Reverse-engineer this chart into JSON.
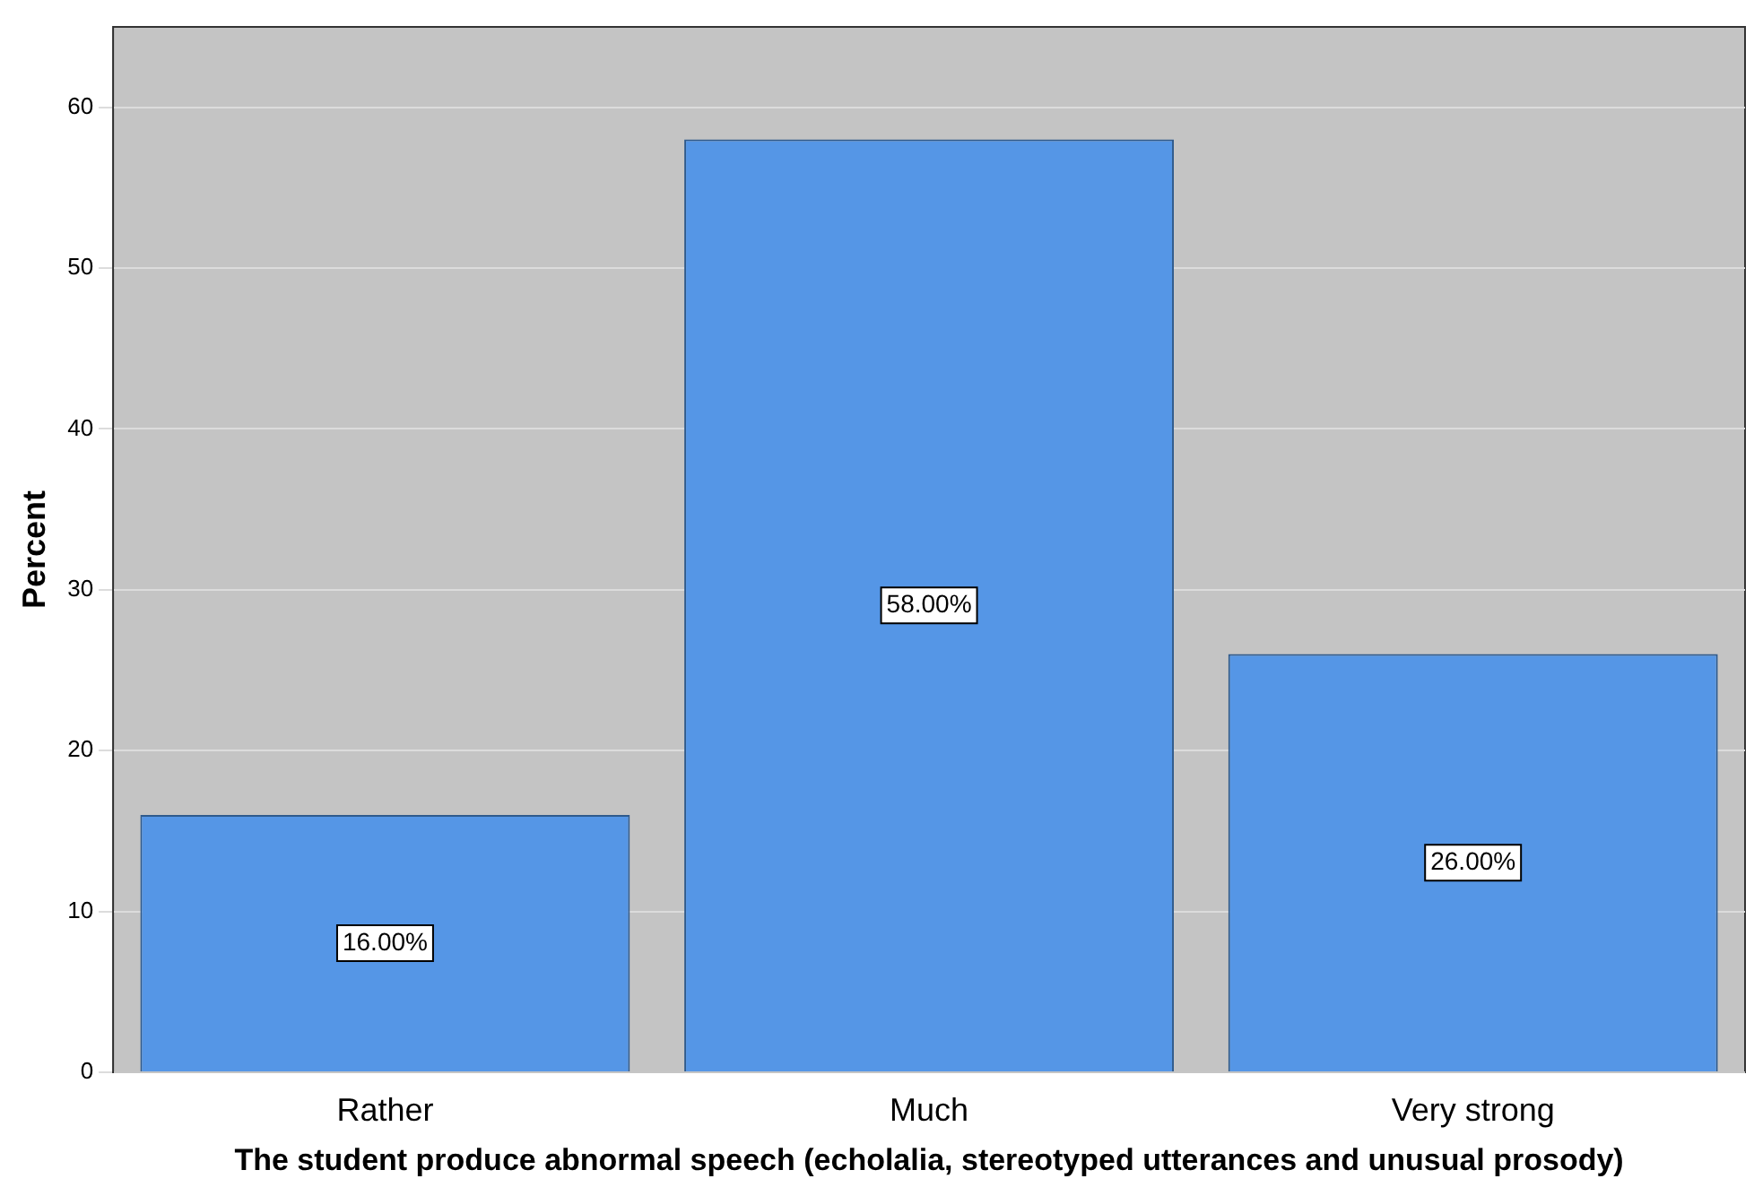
{
  "chart_data": {
    "type": "bar",
    "xlabel": "The student produce abnormal speech (echolalia, stereotyped utterances and unusual prosody)",
    "ylabel": "Percent",
    "categories": [
      "Rather",
      "Much",
      "Very strong"
    ],
    "values": [
      16,
      58,
      26
    ],
    "color": "#5596e6",
    "value_labels": [
      "16.00%",
      "58.00%",
      "26.00%"
    ],
    "ylim": [
      0,
      65
    ],
    "yticks": [
      0,
      10,
      20,
      30,
      40,
      50,
      60
    ],
    "grid": "y"
  }
}
